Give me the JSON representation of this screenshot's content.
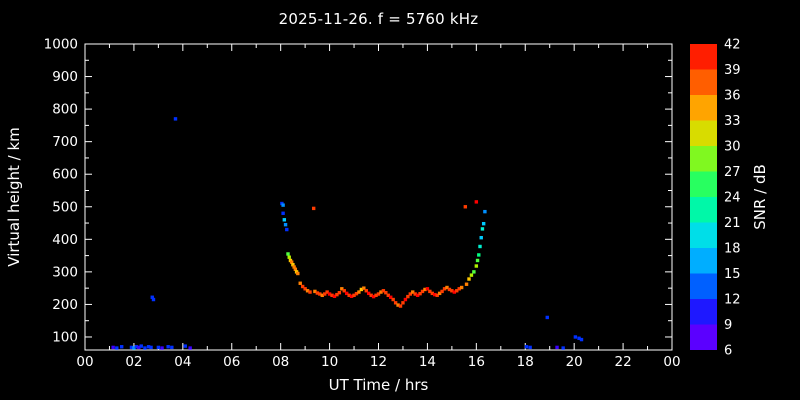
{
  "title": "2025-11-26. f = 5760 kHz",
  "axes": {
    "x_label": "UT Time / hrs",
    "y_label": "Virtual height / km",
    "cbar_label": "SNR / dB"
  },
  "chart_data": {
    "type": "scatter",
    "title": "2025-11-26. f = 5760 kHz",
    "xlabel": "UT Time / hrs",
    "ylabel": "Virtual height / km",
    "xlim": [
      0,
      24
    ],
    "ylim": [
      60,
      1000
    ],
    "grid": false,
    "x_ticks": {
      "values": [
        0,
        2,
        4,
        6,
        8,
        10,
        12,
        14,
        16,
        18,
        20,
        22,
        24
      ],
      "labels": [
        "00",
        "02",
        "04",
        "06",
        "08",
        "10",
        "12",
        "14",
        "16",
        "18",
        "20",
        "22",
        "00"
      ]
    },
    "y_ticks": [
      100,
      200,
      300,
      400,
      500,
      600,
      700,
      800,
      900,
      1000
    ],
    "colorbar": {
      "label": "SNR / dB",
      "min": 6,
      "max": 42,
      "ticks": [
        6,
        9,
        12,
        15,
        18,
        21,
        24,
        27,
        30,
        33,
        36,
        39,
        42
      ],
      "stops": [
        {
          "v": 6,
          "c": "#7a00ff"
        },
        {
          "v": 9,
          "c": "#3c00ff"
        },
        {
          "v": 12,
          "c": "#0030ff"
        },
        {
          "v": 15,
          "c": "#0090ff"
        },
        {
          "v": 18,
          "c": "#00ccff"
        },
        {
          "v": 21,
          "c": "#00f0d0"
        },
        {
          "v": 24,
          "c": "#00ff80"
        },
        {
          "v": 27,
          "c": "#50ff40"
        },
        {
          "v": 30,
          "c": "#b0f000"
        },
        {
          "v": 33,
          "c": "#ffc800"
        },
        {
          "v": 36,
          "c": "#ff8000"
        },
        {
          "v": 39,
          "c": "#ff3c00"
        },
        {
          "v": 42,
          "c": "#ff0000"
        }
      ]
    },
    "points_format": [
      "ut_hrs",
      "virtual_height_km",
      "snr_db"
    ],
    "points": [
      [
        1.15,
        68,
        9
      ],
      [
        1.3,
        66,
        12
      ],
      [
        1.5,
        70,
        12
      ],
      [
        1.9,
        68,
        12
      ],
      [
        2.0,
        66,
        15
      ],
      [
        2.1,
        70,
        12
      ],
      [
        2.2,
        68,
        9
      ],
      [
        2.3,
        72,
        12
      ],
      [
        2.45,
        66,
        12
      ],
      [
        2.6,
        70,
        12
      ],
      [
        2.7,
        68,
        12
      ],
      [
        2.75,
        222,
        12
      ],
      [
        2.8,
        215,
        12
      ],
      [
        3.0,
        68,
        12
      ],
      [
        3.15,
        66,
        9
      ],
      [
        3.4,
        70,
        12
      ],
      [
        3.55,
        68,
        12
      ],
      [
        3.7,
        770,
        12
      ],
      [
        4.1,
        72,
        12
      ],
      [
        4.3,
        66,
        9
      ],
      [
        8.05,
        510,
        12
      ],
      [
        8.1,
        505,
        15
      ],
      [
        8.1,
        480,
        12
      ],
      [
        8.15,
        460,
        18
      ],
      [
        8.2,
        445,
        15
      ],
      [
        8.25,
        430,
        12
      ],
      [
        8.3,
        355,
        27
      ],
      [
        8.35,
        345,
        30
      ],
      [
        8.4,
        335,
        33
      ],
      [
        8.45,
        330,
        36
      ],
      [
        8.5,
        322,
        33
      ],
      [
        8.55,
        315,
        36
      ],
      [
        8.6,
        308,
        36
      ],
      [
        8.65,
        300,
        33
      ],
      [
        8.7,
        295,
        36
      ],
      [
        8.8,
        265,
        36
      ],
      [
        8.9,
        255,
        39
      ],
      [
        9.0,
        248,
        39
      ],
      [
        9.1,
        242,
        36
      ],
      [
        9.2,
        238,
        39
      ],
      [
        9.35,
        495,
        39
      ],
      [
        9.4,
        240,
        36
      ],
      [
        9.5,
        235,
        39
      ],
      [
        9.6,
        232,
        39
      ],
      [
        9.7,
        228,
        36
      ],
      [
        9.8,
        232,
        39
      ],
      [
        9.9,
        238,
        39
      ],
      [
        10.0,
        232,
        42
      ],
      [
        10.1,
        228,
        39
      ],
      [
        10.2,
        225,
        42
      ],
      [
        10.3,
        230,
        39
      ],
      [
        10.4,
        236,
        39
      ],
      [
        10.5,
        248,
        36
      ],
      [
        10.6,
        242,
        39
      ],
      [
        10.7,
        234,
        42
      ],
      [
        10.8,
        228,
        39
      ],
      [
        10.9,
        225,
        42
      ],
      [
        11.0,
        228,
        39
      ],
      [
        11.1,
        233,
        39
      ],
      [
        11.2,
        238,
        36
      ],
      [
        11.3,
        246,
        33
      ],
      [
        11.4,
        250,
        36
      ],
      [
        11.5,
        242,
        39
      ],
      [
        11.6,
        234,
        42
      ],
      [
        11.7,
        228,
        39
      ],
      [
        11.8,
        224,
        42
      ],
      [
        11.9,
        228,
        39
      ],
      [
        12.0,
        232,
        39
      ],
      [
        12.1,
        238,
        36
      ],
      [
        12.2,
        242,
        39
      ],
      [
        12.3,
        236,
        39
      ],
      [
        12.4,
        228,
        39
      ],
      [
        12.5,
        222,
        42
      ],
      [
        12.6,
        215,
        39
      ],
      [
        12.7,
        205,
        39
      ],
      [
        12.8,
        198,
        36
      ],
      [
        12.9,
        195,
        39
      ],
      [
        13.0,
        205,
        39
      ],
      [
        13.1,
        215,
        42
      ],
      [
        13.2,
        224,
        39
      ],
      [
        13.3,
        232,
        39
      ],
      [
        13.4,
        238,
        36
      ],
      [
        13.5,
        232,
        39
      ],
      [
        13.6,
        228,
        42
      ],
      [
        13.7,
        233,
        39
      ],
      [
        13.8,
        240,
        39
      ],
      [
        13.9,
        246,
        36
      ],
      [
        14.0,
        248,
        42
      ],
      [
        14.1,
        240,
        39
      ],
      [
        14.2,
        234,
        39
      ],
      [
        14.3,
        230,
        42
      ],
      [
        14.4,
        228,
        39
      ],
      [
        14.5,
        234,
        36
      ],
      [
        14.6,
        240,
        39
      ],
      [
        14.7,
        248,
        39
      ],
      [
        14.8,
        252,
        36
      ],
      [
        14.9,
        246,
        39
      ],
      [
        15.0,
        242,
        39
      ],
      [
        15.1,
        238,
        42
      ],
      [
        15.2,
        242,
        39
      ],
      [
        15.3,
        248,
        39
      ],
      [
        15.4,
        252,
        36
      ],
      [
        15.55,
        500,
        39
      ],
      [
        15.6,
        262,
        36
      ],
      [
        15.7,
        278,
        33
      ],
      [
        15.8,
        290,
        30
      ],
      [
        15.9,
        300,
        27
      ],
      [
        16.0,
        515,
        42
      ],
      [
        16.0,
        318,
        30
      ],
      [
        16.05,
        335,
        27
      ],
      [
        16.1,
        352,
        24
      ],
      [
        16.15,
        378,
        21
      ],
      [
        16.2,
        405,
        18
      ],
      [
        16.25,
        432,
        21
      ],
      [
        16.3,
        448,
        18
      ],
      [
        16.35,
        485,
        15
      ],
      [
        18.05,
        70,
        12
      ],
      [
        18.2,
        68,
        12
      ],
      [
        18.9,
        160,
        12
      ],
      [
        19.3,
        68,
        9
      ],
      [
        19.55,
        66,
        12
      ],
      [
        20.05,
        100,
        12
      ],
      [
        20.2,
        96,
        12
      ],
      [
        20.3,
        92,
        12
      ]
    ]
  }
}
